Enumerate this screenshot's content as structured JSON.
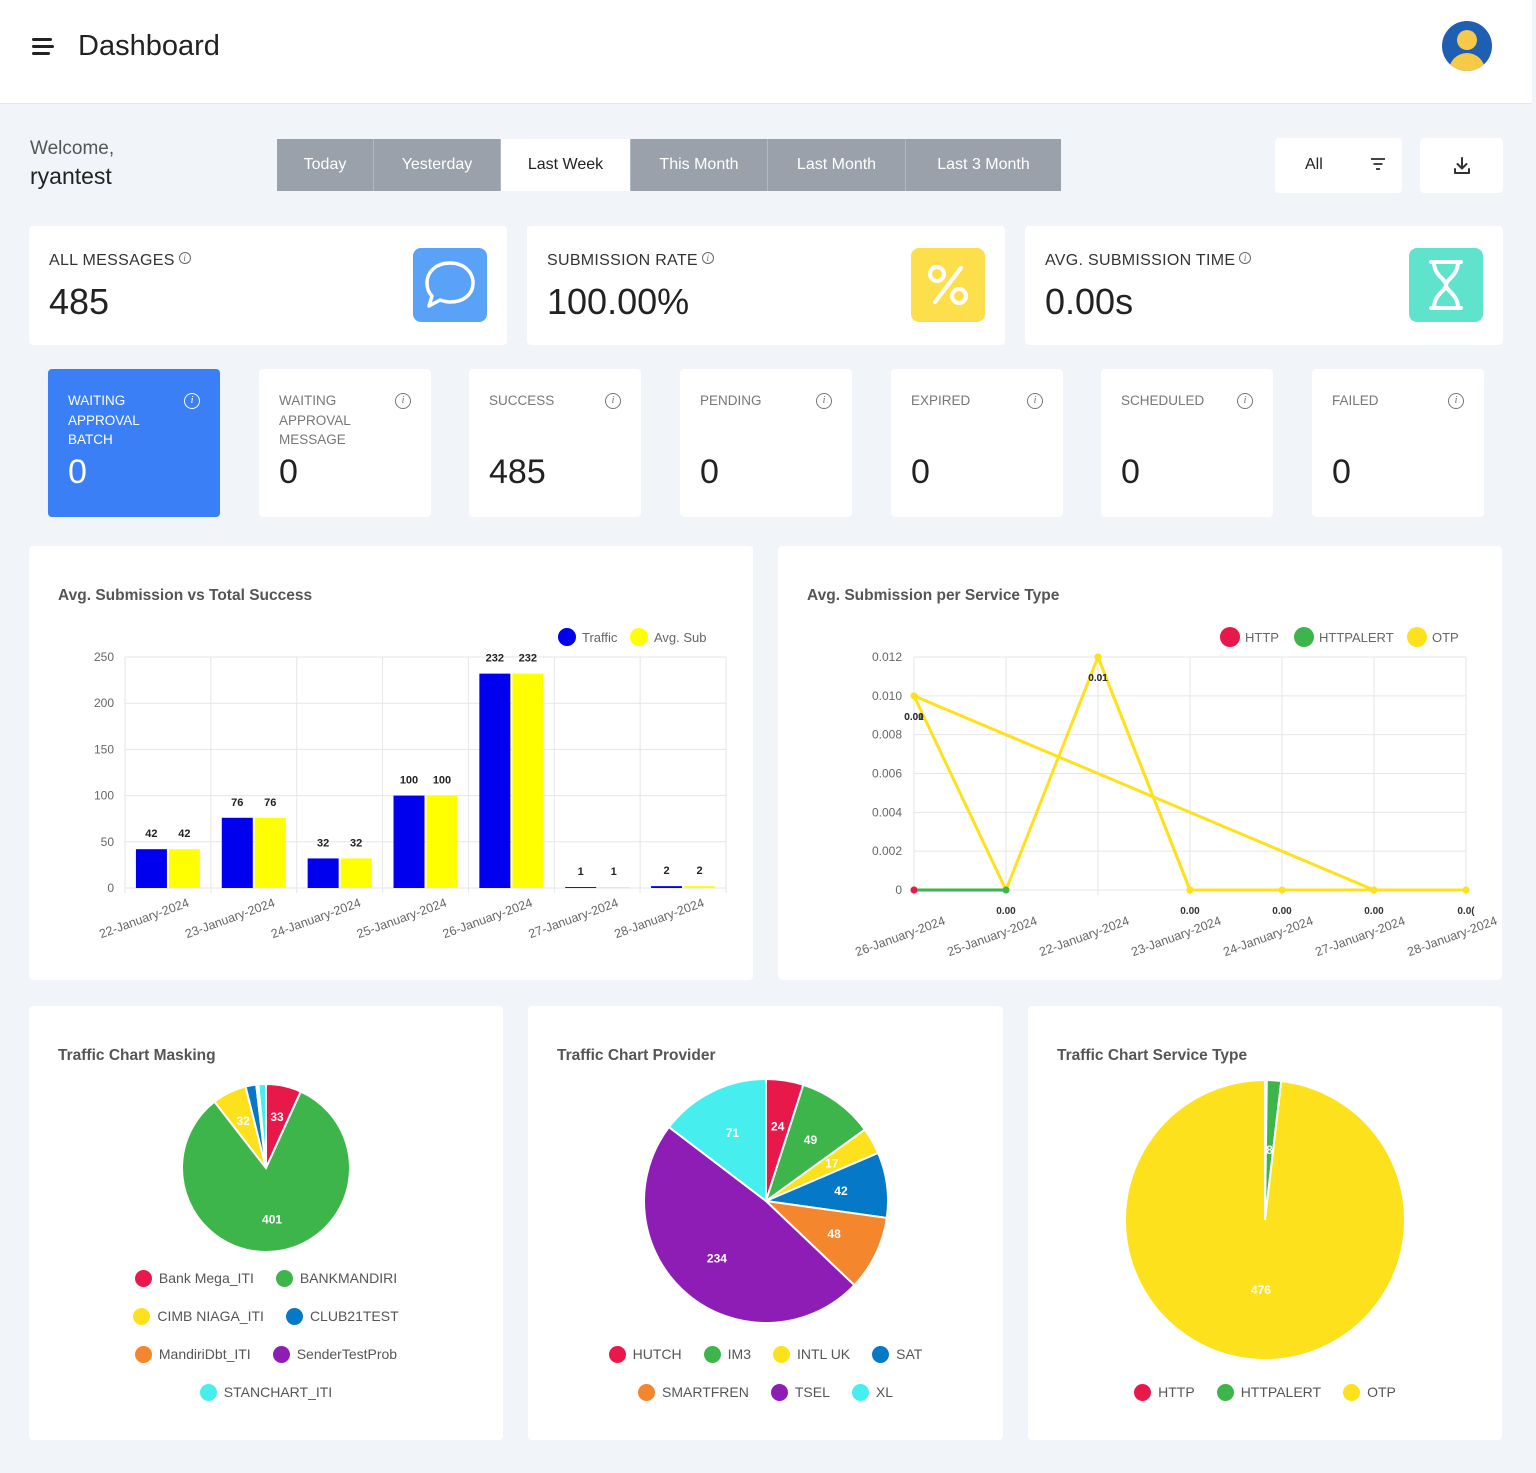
{
  "header": {
    "title": "Dashboard",
    "menu_icon": "hamburger-menu-icon",
    "avatar_icon": "user-avatar-icon"
  },
  "welcome": {
    "greeting": "Welcome,",
    "username": "ryantest"
  },
  "date_ranges": [
    {
      "label": "Today",
      "active": false
    },
    {
      "label": "Yesterday",
      "active": false
    },
    {
      "label": "Last Week",
      "active": true
    },
    {
      "label": "This Month",
      "active": false
    },
    {
      "label": "Last Month",
      "active": false
    },
    {
      "label": "Last 3 Month",
      "active": false
    }
  ],
  "filter": {
    "label": "All",
    "icon": "filter-icon"
  },
  "download": {
    "icon": "download-icon"
  },
  "kpis": [
    {
      "label": "ALL MESSAGES",
      "value": "485",
      "icon": "chat-bubble-icon",
      "color": "#5aa2f8"
    },
    {
      "label": "SUBMISSION RATE",
      "value": "100.00%",
      "icon": "percent-icon",
      "color": "#fddf4b"
    },
    {
      "label": "AVG. SUBMISSION TIME",
      "value": "0.00s",
      "icon": "hourglass-icon",
      "color": "#5fe3cd"
    }
  ],
  "statuses": [
    {
      "label": "WAITING APPROVAL BATCH",
      "value": "0",
      "active": true
    },
    {
      "label": "WAITING APPROVAL MESSAGE",
      "value": "0",
      "active": false
    },
    {
      "label": "SUCCESS",
      "value": "485",
      "active": false
    },
    {
      "label": "PENDING",
      "value": "0",
      "active": false
    },
    {
      "label": "EXPIRED",
      "value": "0",
      "active": false
    },
    {
      "label": "SCHEDULED",
      "value": "0",
      "active": false
    },
    {
      "label": "FAILED",
      "value": "0",
      "active": false
    }
  ],
  "chart_data": [
    {
      "type": "bar",
      "title": "Avg. Submission vs Total Success",
      "categories": [
        "22-January-2024",
        "23-January-2024",
        "24-January-2024",
        "25-January-2024",
        "26-January-2024",
        "27-January-2024",
        "28-January-2024"
      ],
      "series": [
        {
          "name": "Traffic",
          "color": "#0000ee",
          "values": [
            42,
            76,
            32,
            100,
            232,
            1,
            2
          ]
        },
        {
          "name": "Avg. Sub",
          "color": "#ffff00",
          "values": [
            42,
            76,
            32,
            100,
            232,
            1,
            2
          ]
        }
      ],
      "ylim": [
        0,
        250
      ],
      "yticks": [
        0,
        50,
        100,
        150,
        200,
        250
      ],
      "grid": true,
      "legend": "top-right"
    },
    {
      "type": "line",
      "title": "Avg. Submission per Service Type",
      "categories": [
        "26-January-2024",
        "25-January-2024",
        "22-January-2024",
        "23-January-2024",
        "24-January-2024",
        "27-January-2024",
        "28-January-2024"
      ],
      "series": [
        {
          "name": "HTTP",
          "color": "#e8194a",
          "values": [
            0,
            null,
            null,
            null,
            null,
            null,
            null
          ]
        },
        {
          "name": "HTTPALERT",
          "color": "#3db54a",
          "values": [
            0,
            0,
            null,
            null,
            null,
            null,
            null
          ]
        },
        {
          "name": "OTP",
          "color": "#fde11d",
          "values": [
            0.01,
            0,
            0.012,
            0,
            0,
            0,
            0
          ]
        },
        {
          "name": "OTP",
          "color": "#fde11d",
          "values": [
            0.01,
            null,
            null,
            null,
            null,
            0,
            0
          ]
        },
        {
          "name": "OTP",
          "color": "#fde11d",
          "values": [
            null,
            null,
            0.012,
            0,
            null,
            null,
            null
          ]
        }
      ],
      "point_labels": [
        "0.00",
        "0.00",
        "0.01",
        "0.00",
        "0.00",
        "0.00",
        "0.0("
      ],
      "extra_labels": [
        "0.01",
        "0.01"
      ],
      "ylim": [
        0,
        0.012
      ],
      "yticks": [
        "0",
        "0.002",
        "0.004",
        "0.006",
        "0.008",
        "0.010",
        "0.012"
      ],
      "grid": true,
      "legend": "top-right"
    },
    {
      "type": "pie",
      "title": "Traffic Chart Masking",
      "labels": [
        "Bank Mega_ITI",
        "BANKMANDIRI",
        "CIMB NIAGA_ITI",
        "CLUB21TEST",
        "MandiriDbt_ITI",
        "SenderTestProb",
        "STANCHART_ITI"
      ],
      "values": [
        33,
        401,
        32,
        10,
        1,
        1,
        7
      ],
      "slice_labels": [
        "33",
        "401",
        "32",
        "",
        "",
        "",
        ""
      ],
      "colors": [
        "#e8194a",
        "#3db54a",
        "#fde11d",
        "#0678c8",
        "#f4862d",
        "#8e1db5",
        "#46eeee"
      ]
    },
    {
      "type": "pie",
      "title": "Traffic Chart Provider",
      "labels": [
        "HUTCH",
        "IM3",
        "INTL UK",
        "SAT",
        "SMARTFREN",
        "TSEL",
        "XL"
      ],
      "values": [
        24,
        49,
        17,
        42,
        48,
        234,
        71
      ],
      "slice_labels": [
        "24",
        "49",
        "17",
        "42",
        "48",
        "234",
        "71"
      ],
      "colors": [
        "#e8194a",
        "#3db54a",
        "#fde11d",
        "#0678c8",
        "#f4862d",
        "#8e1db5",
        "#46eeee"
      ]
    },
    {
      "type": "pie",
      "title": "Traffic Chart Service Type",
      "labels": [
        "HTTP",
        "HTTPALERT",
        "OTP"
      ],
      "values": [
        1,
        8,
        476
      ],
      "slice_labels": [
        "",
        "8",
        "476"
      ],
      "colors": [
        "#e8194a",
        "#3db54a",
        "#fde11d"
      ]
    }
  ]
}
